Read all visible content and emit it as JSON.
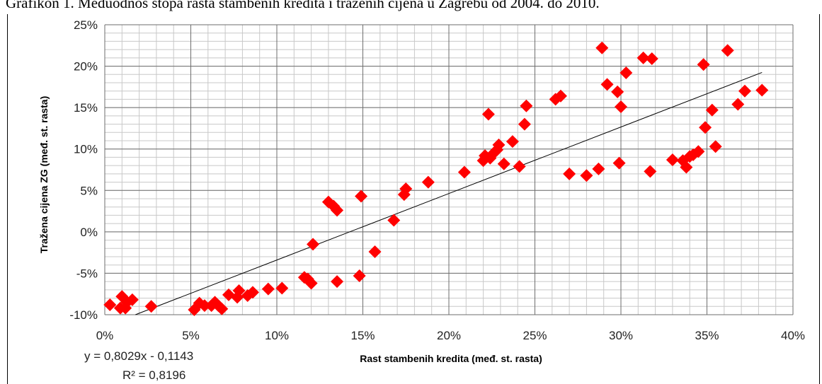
{
  "caption": "Grafikon 1. Međuodnos stopa rasta stambenih kredita i traženih cijena u Zagrebu od 2004. do 2010.",
  "chart_data": {
    "type": "scatter",
    "xlabel": "Rast stambenih kredita (međ. st. rasta)",
    "ylabel": "Tražena cijena ZG (međ. st. rasta)",
    "xlim": [
      0,
      0.4
    ],
    "ylim": [
      -0.1,
      0.25
    ],
    "x_ticks": [
      "0%",
      "5%",
      "10%",
      "15%",
      "20%",
      "25%",
      "30%",
      "35%",
      "40%"
    ],
    "y_ticks": [
      "25%",
      "20%",
      "15%",
      "10%",
      "5%",
      "0%",
      "-5%",
      "-10%"
    ],
    "grid": true,
    "marker_color": "#ff0000",
    "trendline": {
      "slope": 0.8029,
      "intercept": -0.1143,
      "equation": "y = 0,8029x - 0,1143",
      "r_squared": "R² = 0,8196"
    },
    "points": [
      [
        0.003,
        -0.088
      ],
      [
        0.009,
        -0.092
      ],
      [
        0.01,
        -0.078
      ],
      [
        0.012,
        -0.092
      ],
      [
        0.013,
        -0.085
      ],
      [
        0.016,
        -0.082
      ],
      [
        0.027,
        -0.09
      ],
      [
        0.052,
        -0.094
      ],
      [
        0.055,
        -0.086
      ],
      [
        0.058,
        -0.089
      ],
      [
        0.062,
        -0.089
      ],
      [
        0.064,
        -0.085
      ],
      [
        0.066,
        -0.089
      ],
      [
        0.068,
        -0.093
      ],
      [
        0.072,
        -0.076
      ],
      [
        0.077,
        -0.079
      ],
      [
        0.078,
        -0.071
      ],
      [
        0.083,
        -0.077
      ],
      [
        0.086,
        -0.073
      ],
      [
        0.095,
        -0.069
      ],
      [
        0.103,
        -0.068
      ],
      [
        0.116,
        -0.055
      ],
      [
        0.118,
        -0.057
      ],
      [
        0.12,
        -0.062
      ],
      [
        0.121,
        -0.015
      ],
      [
        0.13,
        0.036
      ],
      [
        0.133,
        0.031
      ],
      [
        0.135,
        0.026
      ],
      [
        0.135,
        -0.06
      ],
      [
        0.148,
        -0.053
      ],
      [
        0.149,
        0.043
      ],
      [
        0.157,
        -0.024
      ],
      [
        0.168,
        0.014
      ],
      [
        0.174,
        0.045
      ],
      [
        0.175,
        0.052
      ],
      [
        0.188,
        0.06
      ],
      [
        0.209,
        0.072
      ],
      [
        0.22,
        0.086
      ],
      [
        0.221,
        0.092
      ],
      [
        0.223,
        0.142
      ],
      [
        0.224,
        0.089
      ],
      [
        0.226,
        0.095
      ],
      [
        0.228,
        0.099
      ],
      [
        0.229,
        0.105
      ],
      [
        0.232,
        0.082
      ],
      [
        0.237,
        0.109
      ],
      [
        0.241,
        0.079
      ],
      [
        0.244,
        0.13
      ],
      [
        0.245,
        0.152
      ],
      [
        0.262,
        0.16
      ],
      [
        0.265,
        0.164
      ],
      [
        0.27,
        0.07
      ],
      [
        0.28,
        0.068
      ],
      [
        0.287,
        0.076
      ],
      [
        0.289,
        0.222
      ],
      [
        0.292,
        0.178
      ],
      [
        0.298,
        0.169
      ],
      [
        0.299,
        0.083
      ],
      [
        0.3,
        0.151
      ],
      [
        0.303,
        0.192
      ],
      [
        0.313,
        0.21
      ],
      [
        0.317,
        0.073
      ],
      [
        0.318,
        0.209
      ],
      [
        0.33,
        0.087
      ],
      [
        0.336,
        0.086
      ],
      [
        0.338,
        0.078
      ],
      [
        0.34,
        0.091
      ],
      [
        0.342,
        0.093
      ],
      [
        0.345,
        0.097
      ],
      [
        0.348,
        0.202
      ],
      [
        0.349,
        0.126
      ],
      [
        0.353,
        0.147
      ],
      [
        0.355,
        0.103
      ],
      [
        0.362,
        0.219
      ],
      [
        0.368,
        0.154
      ],
      [
        0.372,
        0.17
      ],
      [
        0.382,
        0.171
      ]
    ]
  }
}
